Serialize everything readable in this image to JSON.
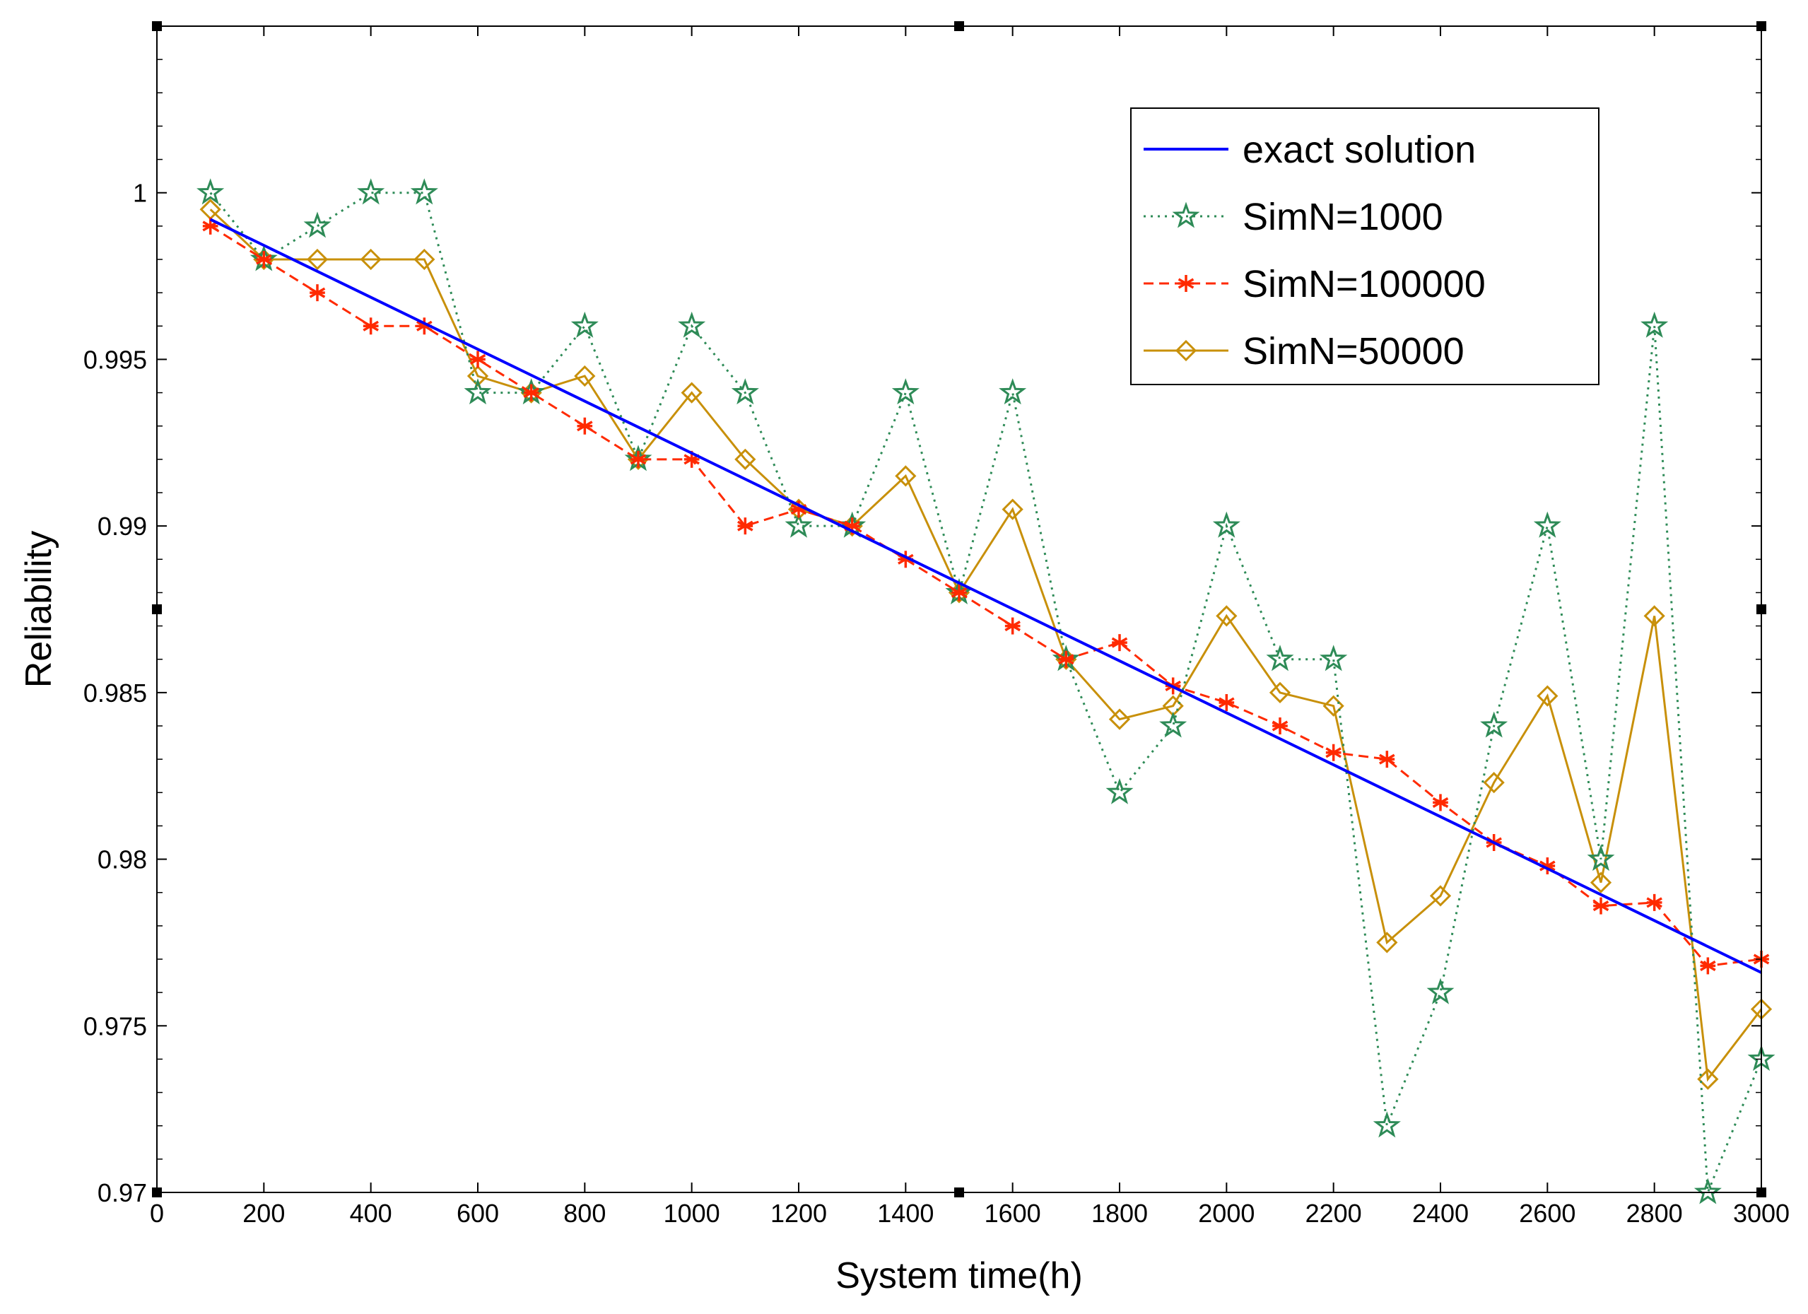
{
  "chart_data": {
    "type": "line",
    "title": "",
    "xlabel": "System time(h)",
    "ylabel": "Reliability",
    "xlim": [
      0,
      3000
    ],
    "ylim": [
      0.97,
      1.005
    ],
    "grid": false,
    "legend_position": "top-right",
    "x_ticks": [
      0,
      200,
      400,
      600,
      800,
      1000,
      1200,
      1400,
      1600,
      1800,
      2000,
      2200,
      2400,
      2600,
      2800,
      3000
    ],
    "x_tick_labels": [
      "0",
      "200",
      "400",
      "600",
      "800",
      "1000",
      "1200",
      "1400",
      "1600",
      "1800",
      "2000",
      "2200",
      "2400",
      "2600",
      "2800",
      "3000"
    ],
    "y_ticks": [
      0.97,
      0.975,
      0.98,
      0.985,
      0.99,
      0.995,
      1.0
    ],
    "y_tick_labels": [
      "0.97",
      "0.975",
      "0.98",
      "0.985",
      "0.99",
      "0.995",
      "1"
    ],
    "x": [
      100,
      200,
      300,
      400,
      500,
      600,
      700,
      800,
      900,
      1000,
      1100,
      1200,
      1300,
      1400,
      1500,
      1600,
      1700,
      1800,
      1900,
      2000,
      2100,
      2200,
      2300,
      2400,
      2500,
      2600,
      2700,
      2800,
      2900,
      3000
    ],
    "series": [
      {
        "name": "exact solution",
        "color": "#0000ff",
        "line_style": "solid",
        "marker": "none",
        "x": [
          100,
          3000
        ],
        "values": [
          0.9992,
          0.9766
        ]
      },
      {
        "name": "SimN=1000",
        "color": "#2e8b57",
        "line_style": "dotted",
        "marker": "star",
        "values": [
          1.0,
          0.998,
          0.999,
          1.0,
          1.0,
          0.994,
          0.994,
          0.996,
          0.992,
          0.996,
          0.994,
          0.99,
          0.99,
          0.994,
          0.988,
          0.994,
          0.986,
          0.982,
          0.984,
          0.99,
          0.986,
          0.986,
          0.972,
          0.976,
          0.984,
          0.99,
          0.98,
          0.996,
          0.97,
          0.974
        ]
      },
      {
        "name": "SimN=100000",
        "color": "#ff2a00",
        "line_style": "dashed",
        "marker": "asterisk",
        "values": [
          0.999,
          0.998,
          0.997,
          0.996,
          0.996,
          0.995,
          0.994,
          0.993,
          0.992,
          0.992,
          0.99,
          0.9905,
          0.99,
          0.989,
          0.988,
          0.987,
          0.986,
          0.9865,
          0.9852,
          0.9847,
          0.984,
          0.9832,
          0.983,
          0.9817,
          0.9805,
          0.9798,
          0.9786,
          0.9787,
          0.9768,
          0.977
        ]
      },
      {
        "name": "SimN=50000",
        "color": "#c8900a",
        "line_style": "solid",
        "marker": "diamond",
        "values": [
          0.9995,
          0.998,
          0.998,
          0.998,
          0.998,
          0.9945,
          0.994,
          0.9945,
          0.992,
          0.994,
          0.992,
          0.9905,
          0.99,
          0.9915,
          0.988,
          0.9905,
          0.986,
          0.9842,
          0.9846,
          0.9873,
          0.985,
          0.9846,
          0.9775,
          0.9789,
          0.9823,
          0.9849,
          0.9793,
          0.9873,
          0.9734,
          0.9755
        ]
      }
    ]
  }
}
